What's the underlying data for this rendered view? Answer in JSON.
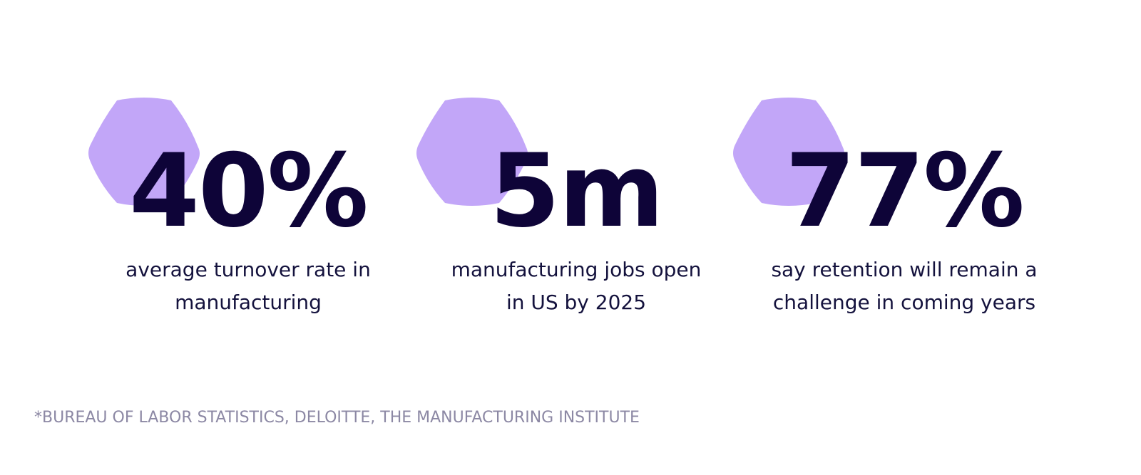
{
  "stats": [
    {
      "value": "40%",
      "label_line1": "average turnover rate in",
      "label_line2": "manufacturing"
    },
    {
      "value": "5m",
      "label_line1": "manufacturing jobs open",
      "label_line2": "in US by 2025"
    },
    {
      "value": "77%",
      "label_line1": "say retention will remain a",
      "label_line2": "challenge in coming years"
    }
  ],
  "source_note": "*BUREAU OF LABOR STATISTICS, DELOITTE, THE MANUFACTURING INSTITUTE",
  "colors": {
    "hexagon": "#c2a6f8",
    "value_text": "#0e0438",
    "label_text": "#14123d",
    "source_text": "#8c88a4"
  },
  "icons": {
    "decoration": "hexagon-icon"
  }
}
